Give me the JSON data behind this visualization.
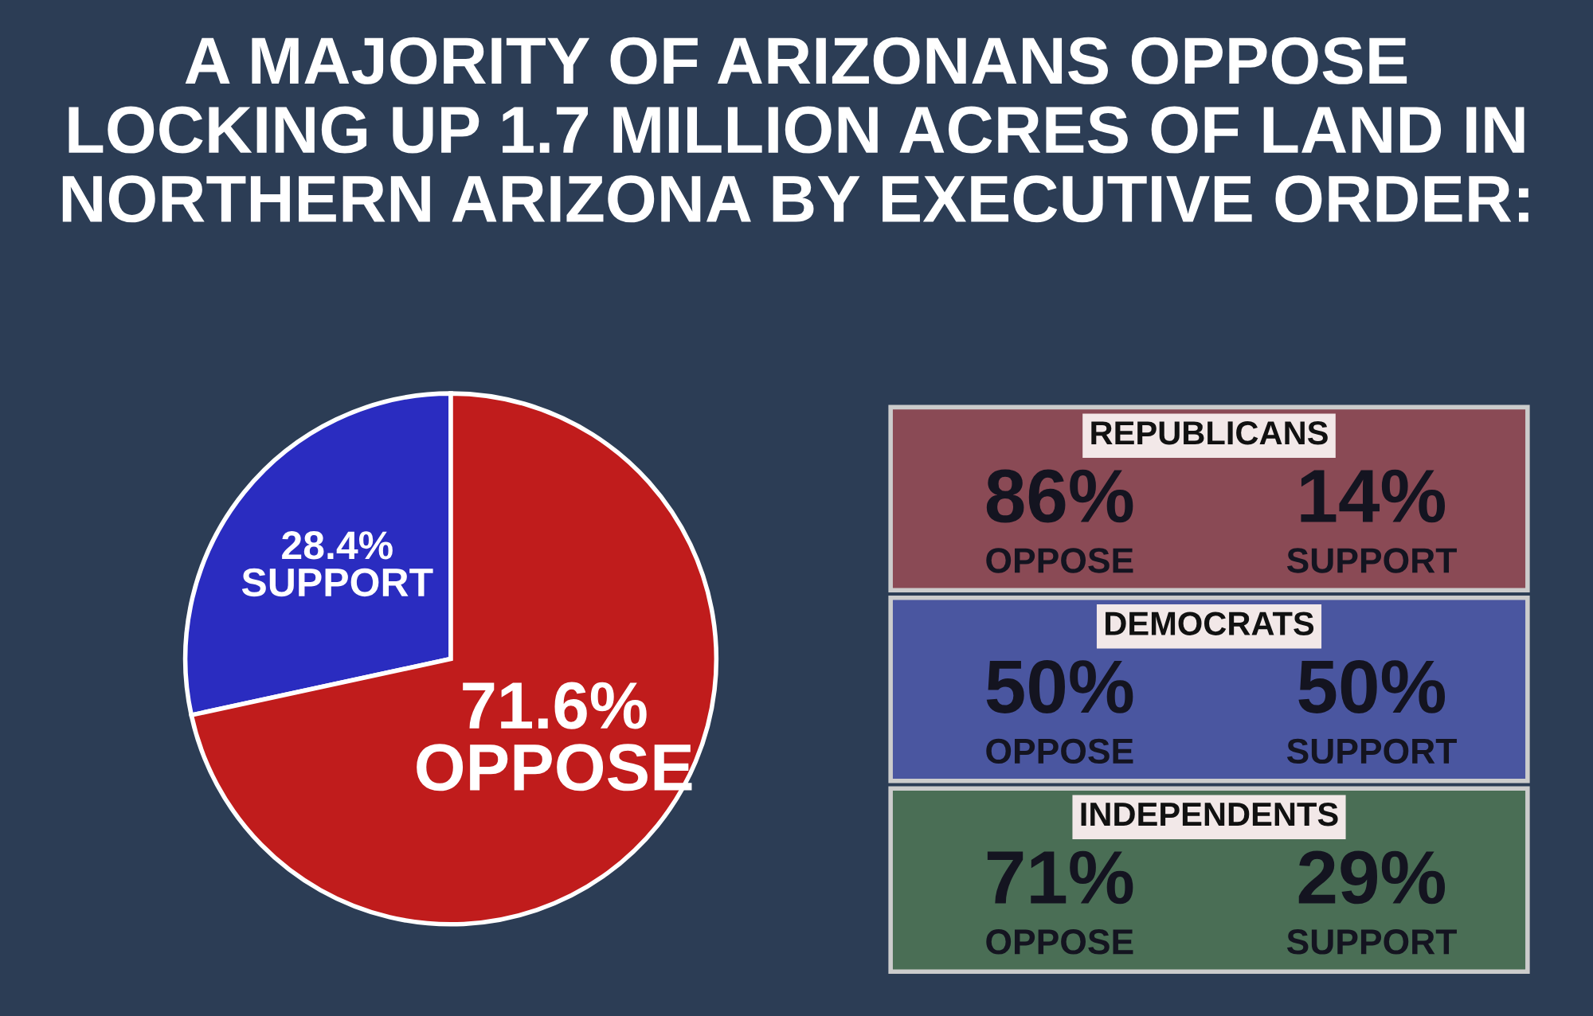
{
  "chart_data": [
    {
      "type": "pie",
      "title": "A MAJORITY OF ARIZONANS OPPOSE\nLOCKING UP 1.7 MILLION ACRES OF LAND IN\nNORTHERN ARIZONA BY EXECUTIVE ORDER:",
      "categories": [
        "SUPPORT",
        "OPPOSE"
      ],
      "values": [
        28.4,
        71.6
      ],
      "colors": [
        "#2a2cc0",
        "#c01c1c"
      ],
      "value_labels": [
        "28.4%",
        "71.6%"
      ]
    },
    {
      "type": "other",
      "colors": [
        "#8a4a55",
        "#4a56a0",
        "#4a6e55"
      ],
      "annotations": [
        "REPUBLICANS",
        "86%",
        "OPPOSE",
        "14%",
        "SUPPORT",
        "DEMOCRATS",
        "50%",
        "OPPOSE",
        "50%",
        "SUPPORT",
        "INDEPENDENTS",
        "71%",
        "OPPOSE",
        "29%",
        "SUPPORT"
      ]
    }
  ]
}
